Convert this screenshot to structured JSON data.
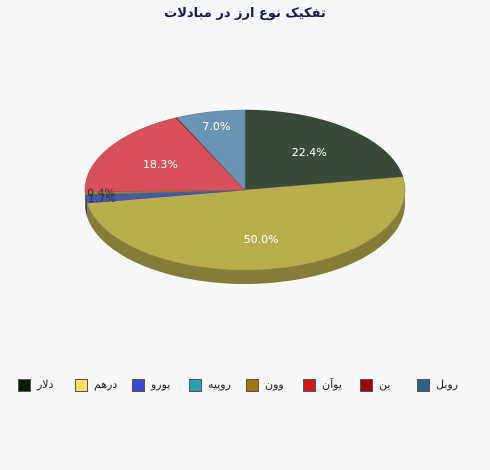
{
  "chart_data": {
    "type": "pie",
    "title": "تفکیک نوع ارز در مبادلات",
    "slices": [
      {
        "name": "دلار",
        "value": 22.4,
        "label": "22.4%",
        "color": "#3a4a3a"
      },
      {
        "name": "درهم",
        "value": 50.0,
        "label": "50.0%",
        "color": "#b8ae4e"
      },
      {
        "name": "یورو",
        "value": 1.7,
        "label": "1.7%",
        "color": "#4a58a8"
      },
      {
        "name": "روپیه",
        "value": 0.1,
        "label": "",
        "color": "#3aaab6"
      },
      {
        "name": "وون",
        "value": 0.4,
        "label": "0.4%",
        "color": "#a88a10"
      },
      {
        "name": "یوآن",
        "value": 18.3,
        "label": "18.3%",
        "color": "#d8505c"
      },
      {
        "name": "ین",
        "value": 0.1,
        "label": "",
        "color": "#b01010"
      },
      {
        "name": "روبل",
        "value": 7.0,
        "label": "7.0%",
        "color": "#6a94b4"
      }
    ],
    "legend_position": "bottom",
    "legend": [
      {
        "name": "دلار",
        "color": "#0a1a0a"
      },
      {
        "name": "درهم",
        "color": "#ffe060"
      },
      {
        "name": "یورو",
        "color": "#3a4ad0"
      },
      {
        "name": "روپیه",
        "color": "#2aa0b8"
      },
      {
        "name": "وون",
        "color": "#a07808"
      },
      {
        "name": "یوآن",
        "color": "#d01818"
      },
      {
        "name": "ین",
        "color": "#a00010"
      },
      {
        "name": "روبل",
        "color": "#2e6088"
      }
    ]
  }
}
